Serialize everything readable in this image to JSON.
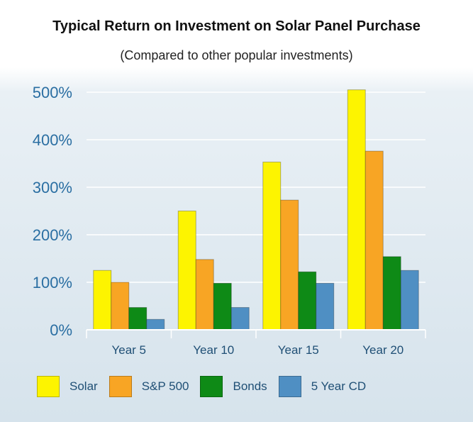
{
  "chart_data": {
    "type": "bar",
    "title": "Typical Return on Investment on Solar Panel Purchase",
    "subtitle": "(Compared to other popular investments)",
    "xlabel": "",
    "ylabel": "",
    "categories": [
      "Year 5",
      "Year 10",
      "Year 15",
      "Year 20"
    ],
    "y_ticks": [
      "0%",
      "100%",
      "200%",
      "300%",
      "400%",
      "500%"
    ],
    "ylim": [
      0,
      500
    ],
    "grid": true,
    "legend_position": "bottom",
    "series": [
      {
        "name": "Solar",
        "color": "#fdf400",
        "values": [
          125,
          250,
          353,
          505
        ]
      },
      {
        "name": "S&P 500",
        "color": "#f8a524",
        "values": [
          100,
          148,
          273,
          376
        ]
      },
      {
        "name": "Bonds",
        "color": "#0e8a16",
        "values": [
          47,
          98,
          122,
          154
        ]
      },
      {
        "name": "5 Year CD",
        "color": "#4f8fc3",
        "values": [
          22,
          47,
          98,
          125
        ]
      }
    ]
  }
}
